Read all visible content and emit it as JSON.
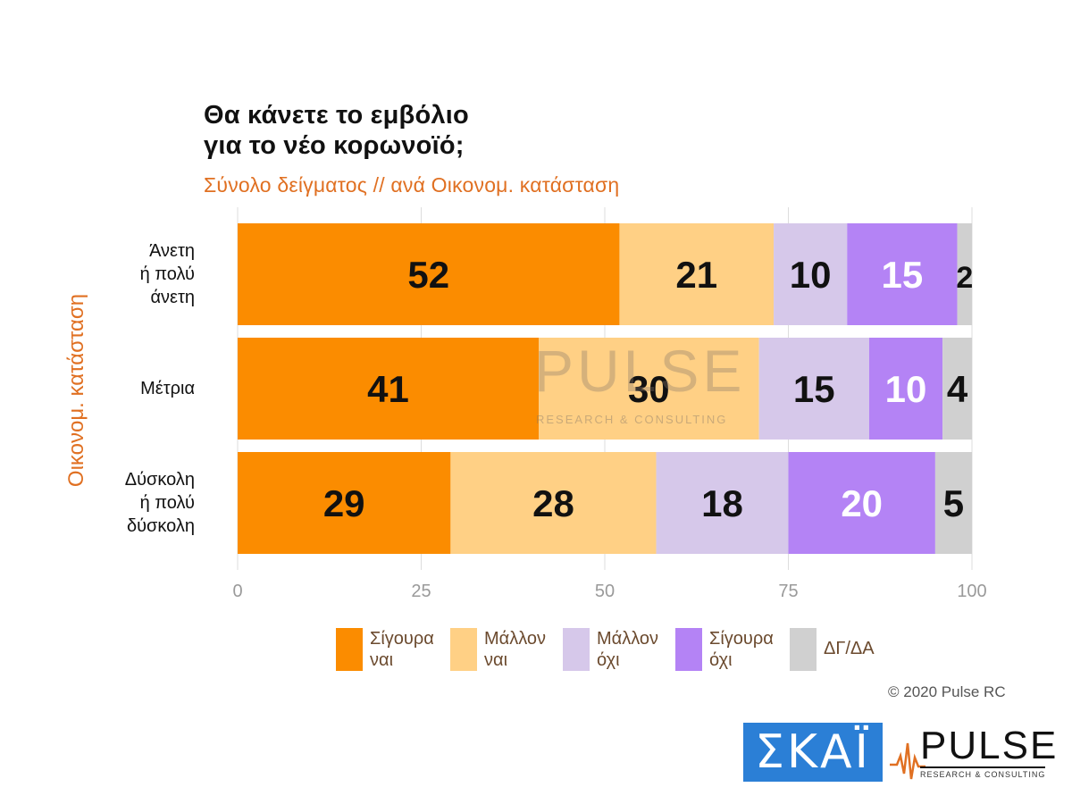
{
  "header": {
    "title_line1": "Θα κάνετε το εμβόλιο",
    "title_line2": "για το νέο κορωνοϊό;",
    "subtitle": "Σύνολο δείγματος // ανά Οικονομ. κατάσταση"
  },
  "watermark": {
    "word": "PULSE",
    "sub": "RESEARCH & CONSULTING"
  },
  "footer": {
    "copyright": "© 2020 Pulse RC",
    "skai_logo": "ΣΚΑΪ",
    "pulse_logo": {
      "word": "PULSE",
      "sub": "RESEARCH & CONSULTING"
    }
  },
  "chart_data": {
    "type": "bar",
    "orientation": "horizontal",
    "stacked": true,
    "xlabel": "",
    "ylabel": "Οικονομ. κατάσταση",
    "xlim": [
      0,
      100
    ],
    "xticks": [
      0,
      25,
      50,
      75,
      100
    ],
    "grid": true,
    "legend_position": "bottom",
    "categories": [
      {
        "label_lines": [
          "Άνετη",
          "ή πολύ",
          "άνετη"
        ]
      },
      {
        "label_lines": [
          "Μέτρια"
        ]
      },
      {
        "label_lines": [
          "Δύσκολη",
          "ή πολύ",
          "δύσκολη"
        ]
      }
    ],
    "series": [
      {
        "name_lines": [
          "Σίγουρα",
          "ναι"
        ],
        "color": "#fb8c00",
        "label_color": "#111111",
        "values": [
          52,
          41,
          29
        ]
      },
      {
        "name_lines": [
          "Μάλλον",
          "ναι"
        ],
        "color": "#ffd085",
        "label_color": "#111111",
        "values": [
          21,
          30,
          28
        ]
      },
      {
        "name_lines": [
          "Μάλλον",
          "όχι"
        ],
        "color": "#d6c8ea",
        "label_color": "#111111",
        "values": [
          10,
          15,
          18
        ]
      },
      {
        "name_lines": [
          "Σίγουρα",
          "όχι"
        ],
        "color": "#b483f5",
        "label_color": "#ffffff",
        "values": [
          15,
          10,
          20
        ]
      },
      {
        "name_lines": [
          "ΔΓ/ΔΑ"
        ],
        "color": "#d0d0d0",
        "label_color": "#111111",
        "values": [
          2,
          4,
          5
        ]
      }
    ]
  }
}
